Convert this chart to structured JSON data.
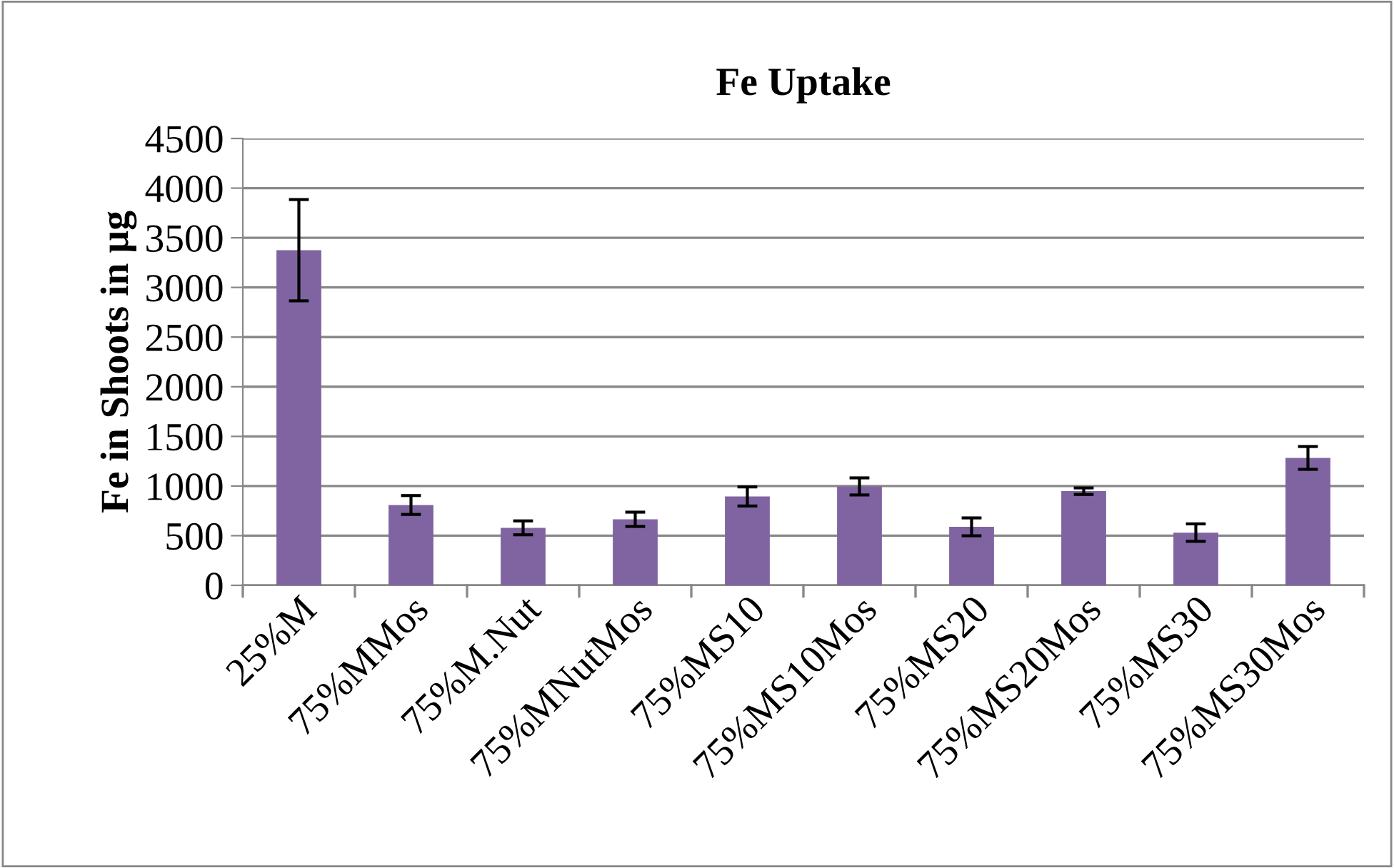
{
  "chart_data": {
    "type": "bar",
    "title": "Fe Uptake",
    "ylabel": "Fe in Shoots in µg",
    "categories": [
      "25%M",
      "75%MMos",
      "75%M.Nut",
      "75%MNutMos",
      "75%MS10",
      "75%MS10Mos",
      "75%MS20",
      "75%MS20Mos",
      "75%MS30",
      "75%MS30Mos"
    ],
    "values": [
      3375,
      809,
      579,
      665,
      895,
      996,
      589,
      948,
      531,
      1283
    ],
    "errors": [
      510,
      95,
      70,
      72,
      96,
      86,
      90,
      33,
      88,
      115
    ],
    "color": "#8064a2",
    "ylim": [
      0,
      4500
    ],
    "yticks": [
      0,
      500,
      1000,
      1500,
      2000,
      2500,
      3000,
      3500,
      4000,
      4500
    ],
    "grid": "y",
    "legend": false
  }
}
